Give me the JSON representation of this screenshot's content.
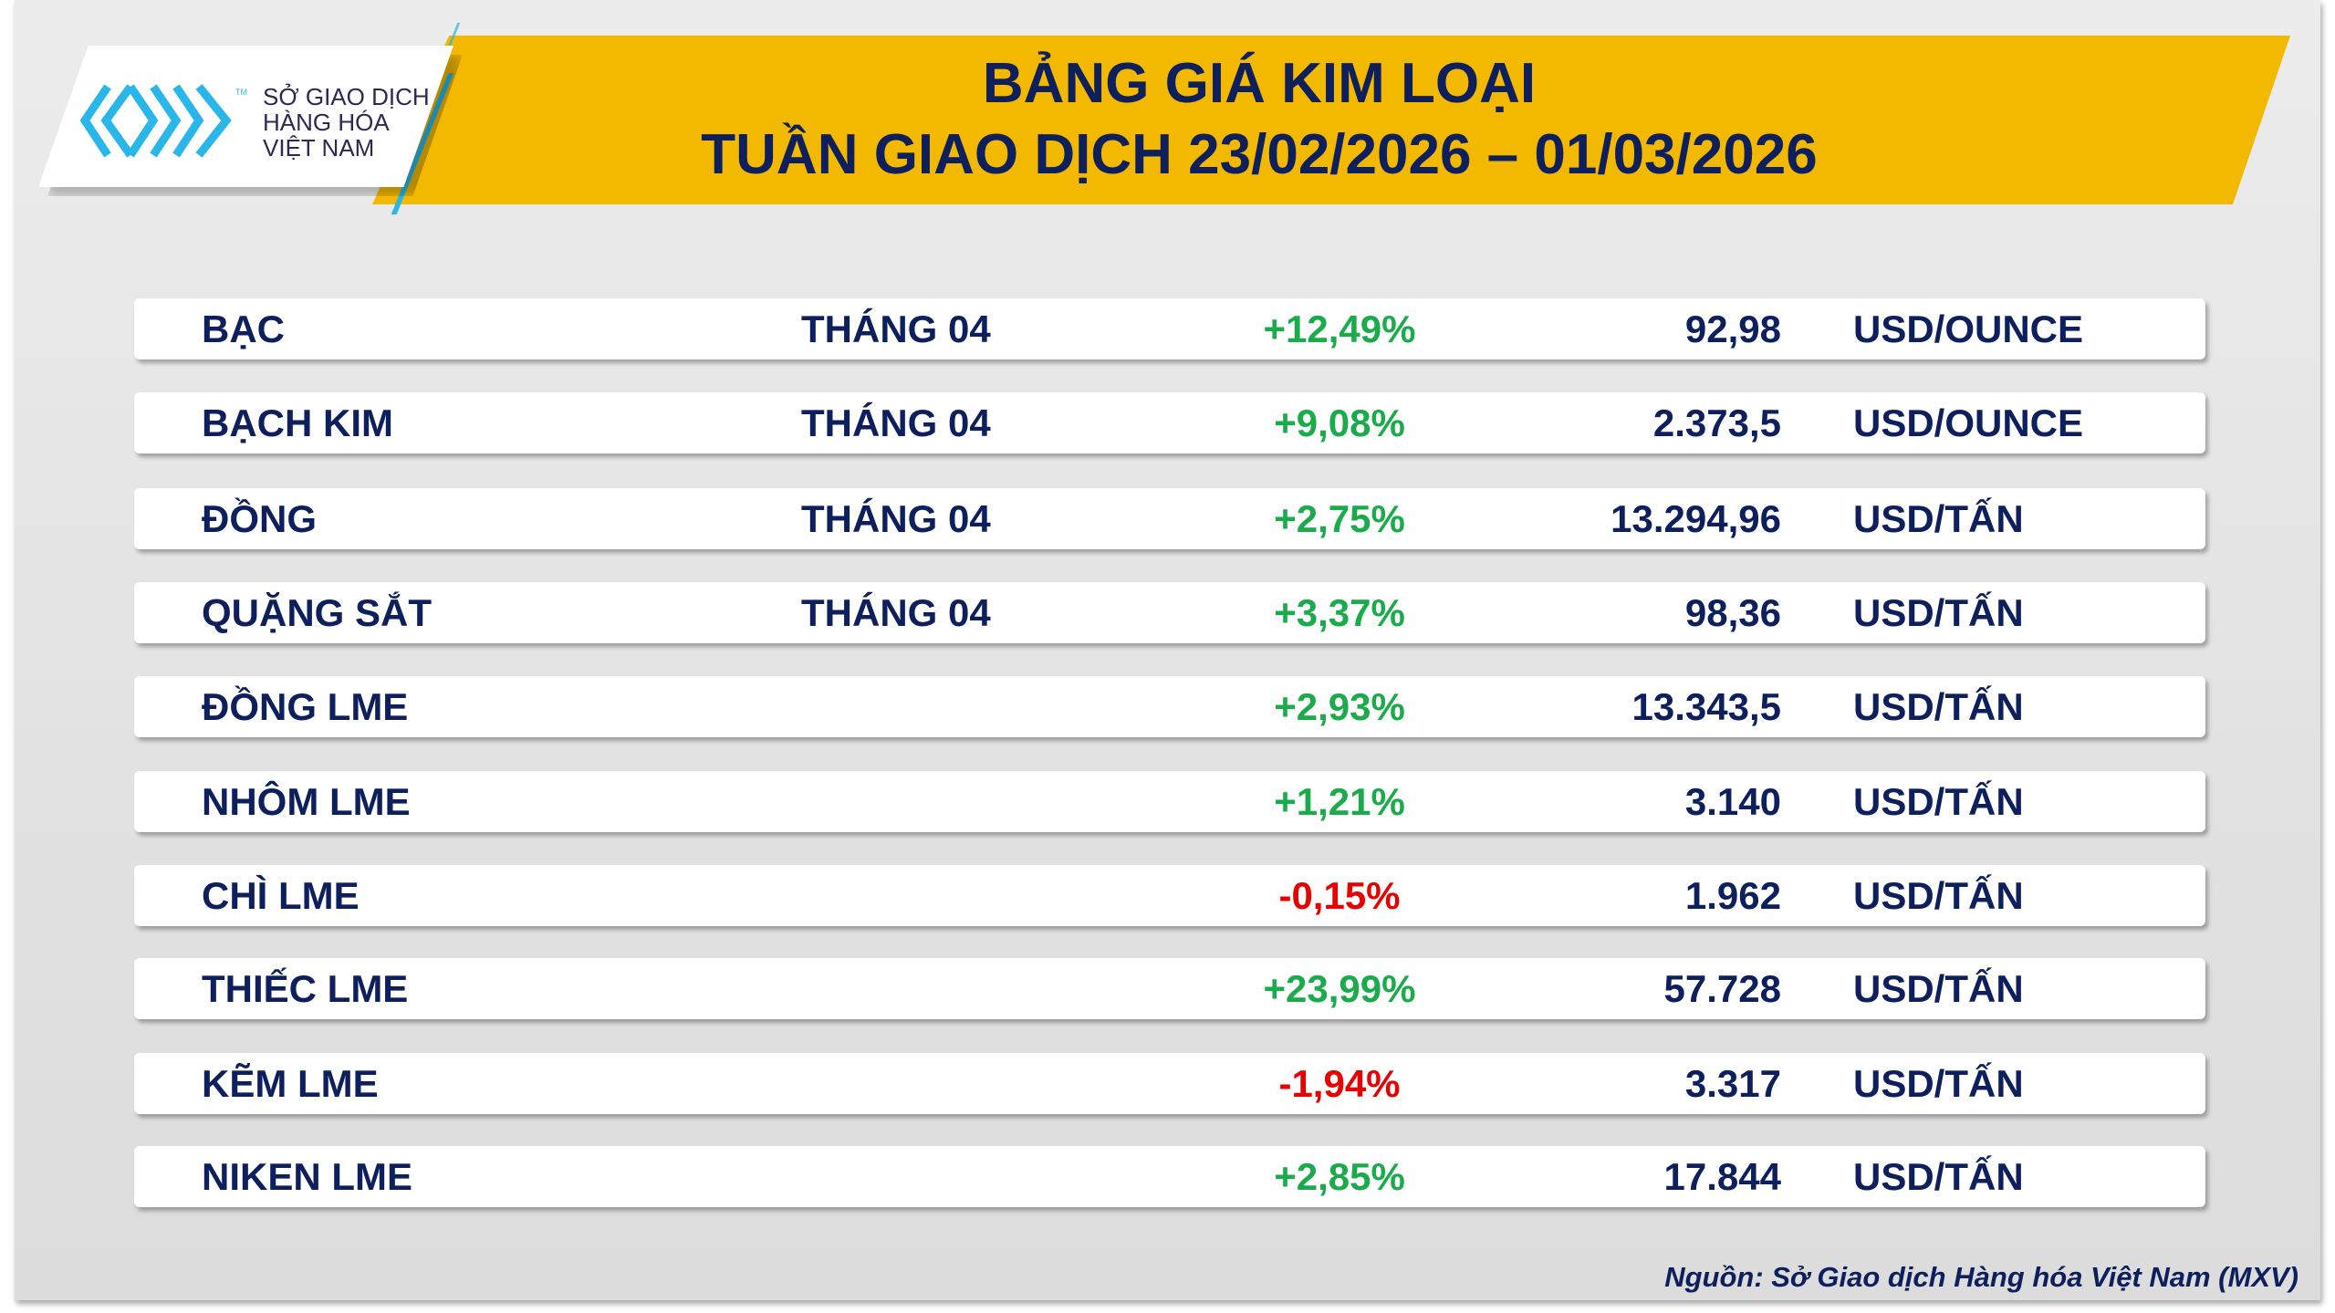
{
  "header": {
    "title_line1": "BẢNG GIÁ KIM LOẠI",
    "title_line2": "TUẦN GIAO DỊCH 23/02/2026 – 01/03/2026"
  },
  "logo": {
    "text": [
      "SỞ GIAO DỊCH",
      "HÀNG HÓA",
      "VIỆT NAM"
    ],
    "tm": "TM",
    "icon": "mxv-logo-icon"
  },
  "colors": {
    "banner": "#f2b900",
    "navy": "#0d1f5c",
    "positive": "#1aab4b",
    "negative": "#e60000",
    "accent": "#29b6e8"
  },
  "rows": [
    {
      "name": "BẠC",
      "month": "THÁNG 04",
      "change": "+12,49%",
      "price": "92,98",
      "unit": "USD/OUNCE",
      "dir": "pos"
    },
    {
      "name": "BẠCH KIM",
      "month": "THÁNG 04",
      "change": "+9,08%",
      "price": "2.373,5",
      "unit": "USD/OUNCE",
      "dir": "pos"
    },
    {
      "name": "ĐỒNG",
      "month": "THÁNG 04",
      "change": "+2,75%",
      "price": "13.294,96",
      "unit": "USD/TẤN",
      "dir": "pos"
    },
    {
      "name": "QUẶNG SẮT",
      "month": "THÁNG 04",
      "change": "+3,37%",
      "price": "98,36",
      "unit": "USD/TẤN",
      "dir": "pos"
    },
    {
      "name": "ĐỒNG LME",
      "month": "",
      "change": "+2,93%",
      "price": "13.343,5",
      "unit": "USD/TẤN",
      "dir": "pos"
    },
    {
      "name": "NHÔM LME",
      "month": "",
      "change": "+1,21%",
      "price": "3.140",
      "unit": "USD/TẤN",
      "dir": "pos"
    },
    {
      "name": "CHÌ LME",
      "month": "",
      "change": "-0,15%",
      "price": "1.962",
      "unit": "USD/TẤN",
      "dir": "neg"
    },
    {
      "name": "THIẾC LME",
      "month": "",
      "change": "+23,99%",
      "price": "57.728",
      "unit": "USD/TẤN",
      "dir": "pos"
    },
    {
      "name": "KẼM LME",
      "month": "",
      "change": "-1,94%",
      "price": "3.317",
      "unit": "USD/TẤN",
      "dir": "neg"
    },
    {
      "name": "NIKEN LME",
      "month": "",
      "change": "+2,85%",
      "price": "17.844",
      "unit": "USD/TẤN",
      "dir": "pos"
    }
  ],
  "footer": {
    "source": "Nguồn: Sở Giao dịch Hàng hóa Việt Nam (MXV)"
  }
}
